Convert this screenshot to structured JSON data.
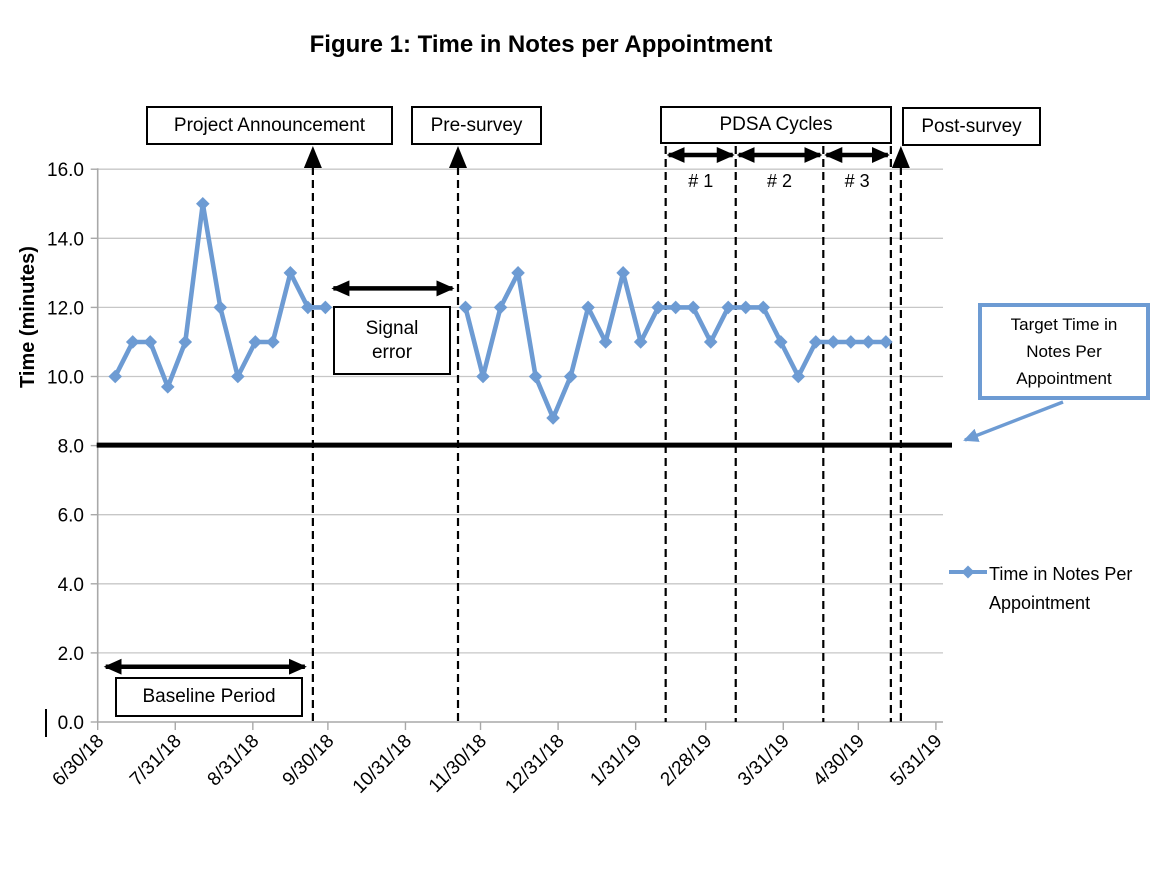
{
  "title": "Figure 1: Time in Notes per Appointment",
  "legend": {
    "series_label": "Time in Notes Per Appointment"
  },
  "annotations": {
    "project_announcement": "Project Announcement",
    "pre_survey": "Pre-survey",
    "pdsa_cycles": "PDSA Cycles",
    "post_survey": "Post-survey",
    "signal_error": "Signal error",
    "baseline_period": "Baseline Period",
    "target": "Target Time in Notes Per Appointment"
  },
  "chart_data": {
    "type": "line",
    "title": "Figure 1: Time in Notes per Appointment",
    "xlabel": "",
    "ylabel": "Time (minutes)",
    "ylim": [
      0,
      16
    ],
    "y_tick_step": 2,
    "y_tick_labels": [
      "0.0",
      "2.0",
      "4.0",
      "6.0",
      "8.0",
      "10.0",
      "12.0",
      "14.0",
      "16.0"
    ],
    "x_ticks": [
      "6/30/18",
      "7/31/18",
      "8/31/18",
      "9/30/18",
      "10/31/18",
      "11/30/18",
      "12/31/18",
      "1/31/19",
      "2/28/19",
      "3/31/19",
      "4/30/19",
      "5/31/19"
    ],
    "grid": "horizontal",
    "legend_position": "right",
    "series": [
      {
        "name": "Time in Notes Per Appointment",
        "color": "#6D9BD3",
        "marker": "diamond",
        "gap_note": "no data between 9/29/18 and 11/24/18 (signal error)",
        "segments": [
          [
            [
              "7/7/18",
              10.0
            ],
            [
              "7/14/18",
              11.0
            ],
            [
              "7/21/18",
              11.0
            ],
            [
              "7/28/18",
              9.7
            ],
            [
              "8/4/18",
              11.0
            ],
            [
              "8/11/18",
              15.0
            ],
            [
              "8/18/18",
              12.0
            ],
            [
              "8/25/18",
              10.0
            ],
            [
              "9/1/18",
              11.0
            ],
            [
              "9/8/18",
              11.0
            ],
            [
              "9/15/18",
              13.0
            ],
            [
              "9/22/18",
              12.0
            ],
            [
              "9/29/18",
              12.0
            ]
          ],
          [
            [
              "11/24/18",
              12.0
            ],
            [
              "12/1/18",
              10.0
            ],
            [
              "12/8/18",
              12.0
            ],
            [
              "12/15/18",
              13.0
            ],
            [
              "12/22/18",
              10.0
            ],
            [
              "12/29/18",
              8.8
            ],
            [
              "1/5/19",
              10.0
            ],
            [
              "1/12/19",
              12.0
            ],
            [
              "1/19/19",
              11.0
            ],
            [
              "1/26/19",
              13.0
            ],
            [
              "2/2/19",
              11.0
            ],
            [
              "2/9/19",
              12.0
            ],
            [
              "2/16/19",
              12.0
            ],
            [
              "2/23/19",
              12.0
            ],
            [
              "3/2/19",
              11.0
            ],
            [
              "3/9/19",
              12.0
            ],
            [
              "3/16/19",
              12.0
            ],
            [
              "3/23/19",
              12.0
            ],
            [
              "3/30/19",
              11.0
            ],
            [
              "4/6/19",
              10.0
            ],
            [
              "4/13/19",
              11.0
            ],
            [
              "4/20/19",
              11.0
            ],
            [
              "4/27/19",
              11.0
            ],
            [
              "5/4/19",
              11.0
            ],
            [
              "5/11/19",
              11.0
            ]
          ]
        ]
      }
    ],
    "target_line": {
      "label": "Target Time in Notes Per Appointment",
      "value": 8.0,
      "color": "#000000"
    },
    "event_lines": [
      {
        "label": "Project Announcement",
        "date": "9/24/18",
        "arrowhead": true
      },
      {
        "label": "Pre-survey",
        "date": "11/21/18",
        "arrowhead": true
      },
      {
        "label": "PDSA cycles start",
        "date": "2/12/19",
        "arrowhead": false
      },
      {
        "label": "PDSA cycle boundary",
        "date": "3/12/19",
        "arrowhead": false
      },
      {
        "label": "PDSA cycle boundary",
        "date": "4/16/19",
        "arrowhead": false
      },
      {
        "label": "PDSA cycles end",
        "date": "5/13/19",
        "arrowhead": false
      },
      {
        "label": "Post-survey",
        "date": "5/17/19",
        "arrowhead": true
      }
    ],
    "pdsa_cycles": [
      {
        "label": "# 1",
        "from": "2/12/19",
        "to": "3/12/19"
      },
      {
        "label": "# 2",
        "from": "3/12/19",
        "to": "4/16/19"
      },
      {
        "label": "# 3",
        "from": "4/16/19",
        "to": "5/13/19"
      }
    ],
    "ranges": [
      {
        "label": "Baseline Period",
        "from": "7/2/18",
        "to": "9/22/18",
        "y_value": 1.6
      },
      {
        "label": "Signal error",
        "from": "10/1/18",
        "to": "11/20/18",
        "y_value": 12.55
      }
    ],
    "colors": {
      "series": "#6D9BD3",
      "target": "#000000",
      "grid": "#c7c7c7",
      "axis": "#a8a8a8"
    }
  }
}
